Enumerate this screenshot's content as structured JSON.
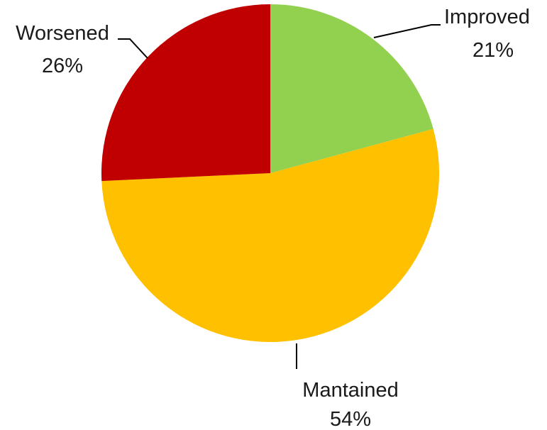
{
  "chart_data": {
    "type": "pie",
    "title": "",
    "slices": [
      {
        "label": "Improved",
        "value": 21,
        "value_label": "21%",
        "color": "#92D050"
      },
      {
        "label": "Mantained",
        "value": 54,
        "value_label": "54%",
        "color": "#FFC000"
      },
      {
        "label": "Worsened",
        "value": 26,
        "value_label": "26%",
        "color": "#C00000"
      }
    ],
    "start_angle": "12 o'clock",
    "direction": "clockwise",
    "legend": "none",
    "labels": "outside with leader lines"
  }
}
